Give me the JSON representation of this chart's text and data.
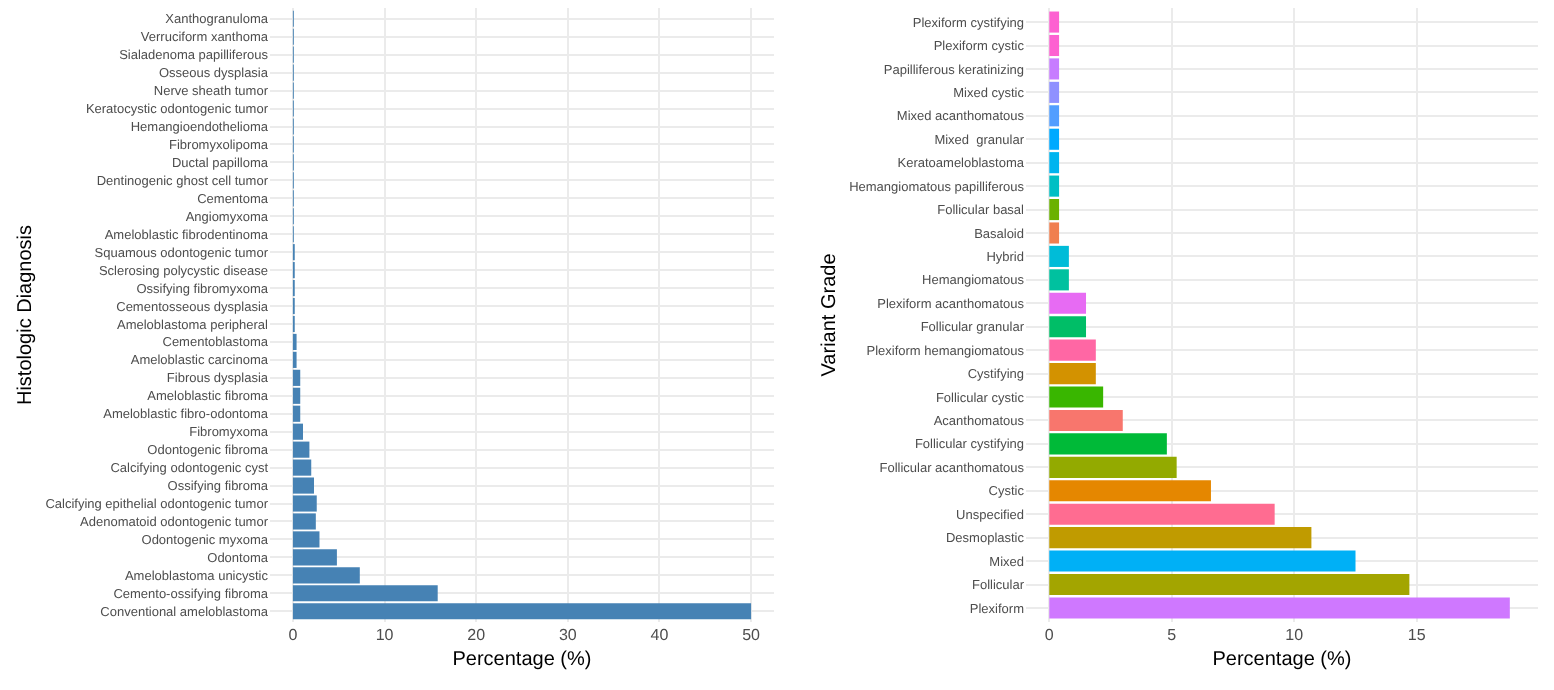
{
  "chart_data": [
    {
      "type": "bar",
      "orientation": "horizontal",
      "xlabel": "Percentage (%)",
      "ylabel": "Histologic Diagnosis",
      "color": "#4682b4",
      "grid": true,
      "categories": [
        "Xanthogranuloma",
        "Verruciform xanthoma",
        "Sialadenoma papilliferous",
        "Osseous dysplasia",
        "Nerve sheath tumor",
        "Keratocystic odontogenic tumor",
        "Hemangioendothelioma",
        "Fibromyxolipoma",
        "Ductal papilloma",
        "Dentinogenic ghost cell tumor",
        "Cementoma",
        "Angiomyxoma",
        "Ameloblastic fibrodentinoma",
        "Squamous odontogenic tumor",
        "Sclerosing polycystic disease",
        "Ossifying fibromyxoma",
        "Cementosseous dysplasia",
        "Ameloblastoma peripheral",
        "Cementoblastoma",
        "Ameloblastic carcinoma",
        "Fibrous dysplasia",
        "Ameloblastic fibroma",
        "Ameloblastic fibro-odontoma",
        "Fibromyxoma",
        "Odontogenic fibroma",
        "Calcifying odontogenic cyst",
        "Ossifying fibroma",
        "Calcifying epithelial odontogenic tumor",
        "Adenomatoid odontogenic tumor",
        "Odontogenic myxoma",
        "Odontoma",
        "Ameloblastoma unicystic",
        "Cemento-ossifying fibroma",
        "Conventional ameloblastoma"
      ],
      "values": [
        0.1,
        0.1,
        0.1,
        0.1,
        0.1,
        0.1,
        0.1,
        0.1,
        0.1,
        0.1,
        0.1,
        0.1,
        0.1,
        0.2,
        0.2,
        0.2,
        0.2,
        0.2,
        0.4,
        0.4,
        0.8,
        0.8,
        0.8,
        1.1,
        1.8,
        2.0,
        2.3,
        2.6,
        2.5,
        2.9,
        4.8,
        7.3,
        15.8,
        50.0
      ],
      "xlim": [
        -2.5,
        52.5
      ],
      "xticks": [
        0,
        10,
        20,
        30,
        40,
        50
      ]
    },
    {
      "type": "bar",
      "orientation": "horizontal",
      "xlabel": "Percentage (%)",
      "ylabel": "Variant Grade",
      "grid": true,
      "categories": [
        "Plexiform cystifying",
        "Plexiform cystic",
        "Papilliferous keratinizing",
        "Mixed cystic",
        "Mixed acanthomatous",
        "Mixed  granular",
        "Keratoameloblastoma",
        "Hemangiomatous papilliferous",
        "Follicular basal",
        "Basaloid",
        "Hybrid",
        "Hemangiomatous",
        "Plexiform acanthomatous",
        "Follicular granular",
        "Plexiform hemangiomatous",
        "Cystifying",
        "Follicular cystic",
        "Acanthomatous",
        "Follicular cystifying",
        "Follicular acanthomatous",
        "Cystic",
        "Unspecified",
        "Desmoplastic",
        "Mixed",
        "Follicular",
        "Plexiform"
      ],
      "values": [
        0.4,
        0.4,
        0.4,
        0.4,
        0.4,
        0.4,
        0.4,
        0.4,
        0.4,
        0.4,
        0.8,
        0.8,
        1.5,
        1.5,
        1.9,
        1.9,
        2.2,
        3.0,
        4.8,
        5.2,
        6.6,
        9.2,
        10.7,
        12.5,
        14.7,
        18.8
      ],
      "colors": [
        "#fd61d1",
        "#fd61d1",
        "#c77cff",
        "#8f91ff",
        "#529eff",
        "#00a9ff",
        "#00b4ef",
        "#00bfc4",
        "#6bb100",
        "#f07f4f",
        "#00bcd8",
        "#00c19f",
        "#e76bf3",
        "#00be67",
        "#ff67a4",
        "#d39200",
        "#39b600",
        "#f8766d",
        "#00ba38",
        "#93aa00",
        "#e58700",
        "#ff6c91",
        "#c09b00",
        "#00b0f6",
        "#a3a500",
        "#cf78ff"
      ],
      "xlim": [
        -0.95,
        19.95
      ],
      "xticks": [
        0,
        5,
        10,
        15
      ]
    }
  ]
}
